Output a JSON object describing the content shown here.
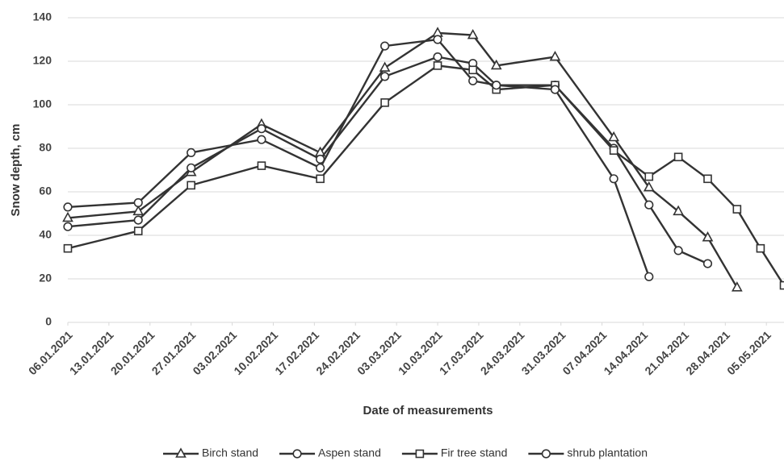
{
  "chart_data": {
    "type": "line",
    "xlabel": "Date of measurements",
    "ylabel": "Snow depth, cm",
    "x": [
      "06.01.2021",
      "18.01.2021",
      "27.01.2021",
      "08.02.2021",
      "18.02.2021",
      "01.03.2021",
      "10.03.2021",
      "16.03.2021",
      "20.03.2021",
      "30.03.2021",
      "09.04.2021",
      "15.04.2021",
      "20.04.2021",
      "25.04.2021",
      "30.04.2021",
      "04.05.2021",
      "08.05.2021"
    ],
    "series": [
      {
        "name": "Birch stand",
        "color": "#333333",
        "marker": "triangle",
        "values": [
          48,
          51,
          69,
          91,
          78,
          117,
          133,
          132,
          118,
          122,
          85,
          62,
          51,
          39,
          16,
          null,
          null
        ]
      },
      {
        "name": "Aspen stand",
        "color": "#333333",
        "marker": "circle",
        "values": [
          44,
          47,
          71,
          89,
          75,
          113,
          122,
          119,
          109,
          109,
          80,
          54,
          33,
          27,
          null,
          null,
          null
        ]
      },
      {
        "name": "Fir tree stand",
        "color": "#333333",
        "marker": "square",
        "values": [
          34,
          42,
          63,
          72,
          66,
          101,
          118,
          116,
          107,
          109,
          79,
          67,
          76,
          66,
          52,
          34,
          17
        ]
      },
      {
        "name": "shrub plantation",
        "color": "#333333",
        "marker": "circle",
        "values": [
          53,
          55,
          78,
          84,
          71,
          127,
          130,
          111,
          109,
          107,
          66,
          21,
          null,
          null,
          null,
          null,
          null
        ]
      }
    ],
    "xlim": [
      "06.01.2021",
      "08.05.2021"
    ],
    "xticks": [
      "06.01.2021",
      "13.01.2021",
      "20.01.2021",
      "27.01.2021",
      "03.02.2021",
      "10.02.2021",
      "17.02.2021",
      "24.02.2021",
      "03.03.2021",
      "10.03.2021",
      "17.03.2021",
      "24.03.2021",
      "31.03.2021",
      "07.04.2021",
      "14.04.2021",
      "21.04.2021",
      "28.04.2021",
      "05.05.2021"
    ],
    "ylim": [
      0,
      140
    ],
    "yticks": [
      0,
      20,
      40,
      60,
      80,
      100,
      120,
      140
    ],
    "grid": true,
    "legend": "bottom"
  }
}
